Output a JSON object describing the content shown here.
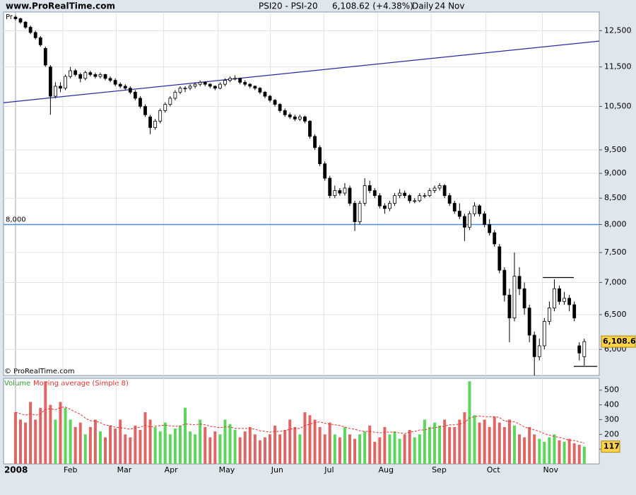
{
  "chart_data": {
    "type": "candlestick",
    "source": "www.ProRealTime.com",
    "title": "PSI20 - PSI-20",
    "quote": "6,108.62 (+4.38%)",
    "period": "Daily",
    "date": "24 Nov",
    "copyright": "© ProRealTime.com",
    "price_label": "Pr",
    "log": true,
    "grid": true,
    "up_color": "#ffffff",
    "down_color": "#000000",
    "ylim": [
      5650,
      13050
    ],
    "yticks": [
      {
        "value": 6000,
        "label": "6,000"
      },
      {
        "value": 6500,
        "label": "6,500"
      },
      {
        "value": 7000,
        "label": "7,000"
      },
      {
        "value": 7500,
        "label": "7,500"
      },
      {
        "value": 8000,
        "label": "8,000"
      },
      {
        "value": 8500,
        "label": "8,500"
      },
      {
        "value": 9000,
        "label": "9,000"
      },
      {
        "value": 9500,
        "label": "9,500"
      },
      {
        "value": 10500,
        "label": "10,500"
      },
      {
        "value": 11500,
        "label": "11,500"
      },
      {
        "value": 12500,
        "label": "12,500"
      }
    ],
    "xlim": [
      -2.4,
      117
    ],
    "xticks": [
      {
        "value": 0,
        "label": "2008"
      },
      {
        "value": 9.5,
        "label": "Feb"
      },
      {
        "value": 20.2,
        "label": "Mar"
      },
      {
        "value": 29.7,
        "label": "Apr"
      },
      {
        "value": 40.6,
        "label": "May"
      },
      {
        "value": 51.1,
        "label": "Jun"
      },
      {
        "value": 61.8,
        "label": "Jul"
      },
      {
        "value": 72.6,
        "label": "Aug"
      },
      {
        "value": 83.3,
        "label": "Sep"
      },
      {
        "value": 94.3,
        "label": "Oct"
      },
      {
        "value": 105.6,
        "label": "Nov"
      }
    ],
    "last": {
      "value": 6108.62,
      "label": "6,108.62"
    },
    "ohlc": [
      [
        12900,
        12950,
        12800,
        12850
      ],
      [
        12850,
        12880,
        12700,
        12750
      ],
      [
        12750,
        12780,
        12550,
        12600
      ],
      [
        12600,
        12650,
        12400,
        12450
      ],
      [
        12450,
        12500,
        12250,
        12300
      ],
      [
        12300,
        12350,
        12050,
        12100
      ],
      [
        12000,
        12050,
        11500,
        11550
      ],
      [
        11500,
        11550,
        10300,
        10750
      ],
      [
        10750,
        11100,
        10700,
        11000
      ],
      [
        11000,
        11100,
        10850,
        10950
      ],
      [
        10950,
        11300,
        10900,
        11250
      ],
      [
        11250,
        11500,
        11200,
        11400
      ],
      [
        11400,
        11450,
        11250,
        11300
      ],
      [
        11300,
        11350,
        11100,
        11200
      ],
      [
        11200,
        11400,
        11150,
        11350
      ],
      [
        11350,
        11400,
        11250,
        11300
      ],
      [
        11300,
        11350,
        11200,
        11250
      ],
      [
        11250,
        11350,
        11200,
        11300
      ],
      [
        11300,
        11320,
        11150,
        11200
      ],
      [
        11200,
        11250,
        11100,
        11150
      ],
      [
        11150,
        11200,
        11000,
        11050
      ],
      [
        11050,
        11100,
        10950,
        11000
      ],
      [
        11000,
        11050,
        10900,
        10950
      ],
      [
        10950,
        11000,
        10800,
        10850
      ],
      [
        10850,
        10900,
        10650,
        10700
      ],
      [
        10700,
        10750,
        10450,
        10500
      ],
      [
        10500,
        10550,
        10250,
        10300
      ],
      [
        10250,
        10300,
        9850,
        10000
      ],
      [
        10000,
        10200,
        9950,
        10150
      ],
      [
        10150,
        10450,
        10100,
        10400
      ],
      [
        10400,
        10600,
        10350,
        10550
      ],
      [
        10550,
        10750,
        10500,
        10700
      ],
      [
        10700,
        10900,
        10650,
        10850
      ],
      [
        10850,
        11000,
        10800,
        10950
      ],
      [
        10950,
        11000,
        10850,
        10950
      ],
      [
        10950,
        11050,
        10900,
        11000
      ],
      [
        11000,
        11100,
        10950,
        11050
      ],
      [
        11050,
        11150,
        11000,
        11100
      ],
      [
        11100,
        11120,
        11000,
        11050
      ],
      [
        11050,
        11080,
        10950,
        11000
      ],
      [
        11000,
        11020,
        10900,
        10950
      ],
      [
        10950,
        11100,
        10920,
        11050
      ],
      [
        11050,
        11200,
        11000,
        11150
      ],
      [
        11150,
        11250,
        11100,
        11200
      ],
      [
        11200,
        11280,
        11150,
        11200
      ],
      [
        11200,
        11220,
        11050,
        11100
      ],
      [
        11100,
        11150,
        11000,
        11050
      ],
      [
        11050,
        11080,
        10950,
        11000
      ],
      [
        11000,
        11020,
        10900,
        10950
      ],
      [
        10950,
        10980,
        10800,
        10850
      ],
      [
        10850,
        10880,
        10700,
        10750
      ],
      [
        10750,
        10780,
        10600,
        10650
      ],
      [
        10650,
        10680,
        10500,
        10550
      ],
      [
        10550,
        10580,
        10350,
        10400
      ],
      [
        10400,
        10450,
        10250,
        10300
      ],
      [
        10300,
        10350,
        10200,
        10250
      ],
      [
        10250,
        10300,
        10150,
        10200
      ],
      [
        10200,
        10300,
        10150,
        10250
      ],
      [
        10250,
        10280,
        10100,
        10150
      ],
      [
        10150,
        10170,
        9750,
        9800
      ],
      [
        9800,
        9850,
        9500,
        9550
      ],
      [
        9550,
        9600,
        9150,
        9200
      ],
      [
        9200,
        9250,
        8850,
        8900
      ],
      [
        8900,
        8950,
        8500,
        8550
      ],
      [
        8550,
        8750,
        8500,
        8650
      ],
      [
        8650,
        8700,
        8550,
        8600
      ],
      [
        8600,
        8800,
        8550,
        8700
      ],
      [
        8700,
        8750,
        8350,
        8400
      ],
      [
        8400,
        8450,
        7880,
        8050
      ],
      [
        8050,
        8450,
        8000,
        8400
      ],
      [
        8400,
        8900,
        8350,
        8750
      ],
      [
        8750,
        8850,
        8600,
        8650
      ],
      [
        8650,
        8700,
        8500,
        8550
      ],
      [
        8550,
        8600,
        8300,
        8350
      ],
      [
        8350,
        8400,
        8200,
        8300
      ],
      [
        8300,
        8450,
        8250,
        8400
      ],
      [
        8400,
        8600,
        8350,
        8550
      ],
      [
        8550,
        8680,
        8500,
        8600
      ],
      [
        8600,
        8650,
        8500,
        8550
      ],
      [
        8550,
        8580,
        8400,
        8450
      ],
      [
        8450,
        8500,
        8400,
        8450
      ],
      [
        8450,
        8600,
        8420,
        8550
      ],
      [
        8550,
        8600,
        8500,
        8550
      ],
      [
        8550,
        8700,
        8520,
        8650
      ],
      [
        8650,
        8750,
        8600,
        8700
      ],
      [
        8700,
        8800,
        8650,
        8750
      ],
      [
        8750,
        8780,
        8500,
        8550
      ],
      [
        8550,
        8600,
        8350,
        8400
      ],
      [
        8400,
        8450,
        8200,
        8250
      ],
      [
        8250,
        8400,
        8100,
        8150
      ],
      [
        8150,
        8200,
        7700,
        7950
      ],
      [
        7950,
        8250,
        7900,
        8200
      ],
      [
        8200,
        8420,
        8150,
        8350
      ],
      [
        8350,
        8380,
        8150,
        8200
      ],
      [
        8200,
        8250,
        7950,
        8000
      ],
      [
        8000,
        8100,
        7800,
        7850
      ],
      [
        7850,
        7900,
        7600,
        7650
      ],
      [
        7600,
        7650,
        7150,
        7200
      ],
      [
        7200,
        7250,
        6700,
        6800
      ],
      [
        6800,
        6900,
        6100,
        6450
      ],
      [
        6450,
        7500,
        6400,
        7100
      ],
      [
        7100,
        7250,
        6800,
        6900
      ],
      [
        6900,
        7000,
        6500,
        6600
      ],
      [
        6600,
        6650,
        6100,
        6200
      ],
      [
        6200,
        6250,
        5650,
        5900
      ],
      [
        5900,
        6150,
        5850,
        6050
      ],
      [
        6050,
        6450,
        6000,
        6400
      ],
      [
        6400,
        6700,
        6350,
        6600
      ],
      [
        6600,
        7050,
        6550,
        6900
      ],
      [
        6900,
        6950,
        6650,
        6700
      ],
      [
        6700,
        6850,
        6650,
        6750
      ],
      [
        6750,
        6800,
        6550,
        6650
      ],
      [
        6650,
        6700,
        6400,
        6450
      ],
      [
        6050,
        6100,
        5850,
        5950
      ],
      [
        5900,
        6150,
        5780,
        6108.62
      ]
    ],
    "annotations": [
      {
        "type": "trendline",
        "color": "#2a2aa0",
        "x": [
          -2.4,
          117
        ],
        "values": [
          10590,
          12205
        ]
      },
      {
        "type": "hline",
        "color": "#4a8ee0",
        "value": 8000,
        "label": "8,000"
      },
      {
        "type": "segment",
        "color": "#000000",
        "x": [
          105.7,
          111.9
        ],
        "values": [
          7080,
          7080
        ]
      },
      {
        "type": "segment",
        "color": "#000000",
        "x": [
          111.9,
          116.6
        ],
        "values": [
          5770,
          5770
        ]
      }
    ],
    "volume": {
      "name": "Volume",
      "color": "#2ca02c",
      "up_color": "#5cd65c",
      "down_color": "#e06666",
      "ylim": [
        0,
        580
      ],
      "yticks": [
        100,
        200,
        300,
        400,
        500
      ],
      "last": 117,
      "values": [
        350,
        300,
        280,
        420,
        300,
        380,
        560,
        400,
        300,
        420,
        380,
        300,
        250,
        280,
        200,
        250,
        300,
        220,
        180,
        260,
        240,
        300,
        200,
        180,
        260,
        230,
        350,
        300,
        250,
        220,
        280,
        200,
        240,
        260,
        380,
        220,
        200,
        300,
        250,
        180,
        220,
        200,
        300,
        270,
        230,
        180,
        220,
        250,
        200,
        160,
        180,
        200,
        260,
        200,
        230,
        300,
        250,
        200,
        350,
        330,
        300,
        250,
        200,
        280,
        200,
        180,
        250,
        200,
        170,
        200,
        220,
        260,
        150,
        180,
        250,
        200,
        220,
        170,
        200,
        230,
        180,
        200,
        300,
        250,
        280,
        260,
        300,
        250,
        250,
        300,
        350,
        560,
        330,
        280,
        300,
        250,
        320,
        280,
        250,
        300,
        260,
        200,
        180,
        250,
        200,
        170,
        150,
        180,
        200,
        160,
        150,
        170,
        140,
        130,
        117
      ]
    },
    "moving_average": {
      "name": "Moving average (Simple 8)",
      "color": "#e03030",
      "values": [
        350,
        340,
        330,
        340,
        330,
        340,
        370,
        374,
        367,
        382,
        385,
        370,
        352,
        337,
        310,
        293,
        290,
        280,
        262,
        260,
        248,
        246,
        240,
        235,
        245,
        248,
        261,
        250,
        255,
        260,
        262,
        258,
        255,
        255,
        270,
        268,
        265,
        270,
        265,
        255,
        250,
        245,
        250,
        250,
        240,
        240,
        240,
        240,
        235,
        225,
        220,
        215,
        220,
        220,
        225,
        235,
        240,
        240,
        260,
        270,
        280,
        285,
        275,
        270,
        265,
        260,
        250,
        240,
        235,
        225,
        220,
        220,
        215,
        210,
        215,
        215,
        215,
        210,
        205,
        215,
        220,
        230,
        230,
        240,
        245,
        250,
        255,
        265,
        265,
        270,
        280,
        310,
        320,
        325,
        320,
        320,
        320,
        315,
        290,
        290,
        285,
        270,
        250,
        240,
        230,
        220,
        205,
        195,
        185,
        180,
        170,
        160,
        158,
        150,
        140
      ]
    }
  }
}
